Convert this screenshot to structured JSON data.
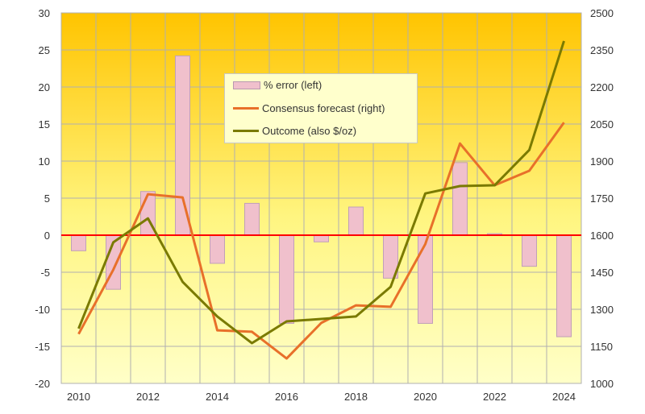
{
  "chart_data": {
    "type": "bar+line",
    "categories": [
      "2010",
      "2011",
      "2012",
      "2013",
      "2014",
      "2015",
      "2016",
      "2017",
      "2018",
      "2019",
      "2020",
      "2021",
      "2022",
      "2023",
      "2024"
    ],
    "x_tick_labels": [
      "2010",
      "2012",
      "2014",
      "2016",
      "2018",
      "2020",
      "2022",
      "2024"
    ],
    "left_axis": {
      "ylim": [
        -20,
        30
      ],
      "ticks": [
        "-20",
        "-15",
        "-10",
        "-5",
        "0",
        "5",
        "10",
        "15",
        "20",
        "25",
        "30"
      ]
    },
    "right_axis": {
      "ylim": [
        1000,
        2500
      ],
      "ticks": [
        "1000",
        "1150",
        "1300",
        "1450",
        "1600",
        "1750",
        "1900",
        "2050",
        "2200",
        "2350",
        "2500"
      ]
    },
    "grid": true,
    "legend_position": "top-center",
    "series": [
      {
        "name": "% error (left)",
        "type": "bar",
        "axis": "left",
        "color": "#F0C0CC",
        "values": [
          -2.1,
          -7.3,
          5.9,
          24.2,
          -3.8,
          4.3,
          -11.9,
          -0.9,
          3.8,
          -5.8,
          -11.9,
          9.8,
          0.2,
          -4.2,
          -13.7
        ]
      },
      {
        "name": "Consensus forecast (right)",
        "type": "line",
        "axis": "right",
        "color": "#E8702A",
        "values": [
          1200,
          1460,
          1766,
          1753,
          1215,
          1209,
          1101,
          1245,
          1316,
          1310,
          1564,
          1971,
          1802,
          1861,
          2056
        ]
      },
      {
        "name": "Outcome (also $/oz)",
        "type": "line",
        "axis": "right",
        "color": "#7A7A00",
        "values": [
          1222,
          1571,
          1668,
          1411,
          1271,
          1163,
          1251,
          1261,
          1271,
          1391,
          1769,
          1799,
          1802,
          1945,
          2386
        ]
      }
    ],
    "zero_line_color": "#FF0000",
    "background_gradient": [
      "#FFC400",
      "#FFFFC8"
    ]
  }
}
